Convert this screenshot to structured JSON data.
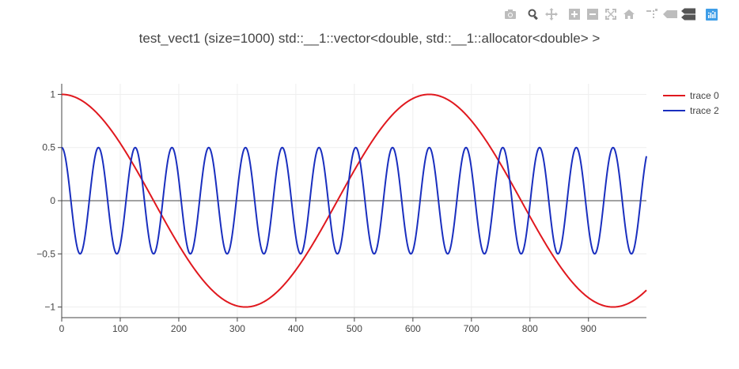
{
  "modebar": {
    "icons": [
      "camera-icon",
      "zoom-icon",
      "pan-icon",
      "zoom-in-icon",
      "zoom-out-icon",
      "autoscale-icon",
      "reset-axes-icon",
      "spike-lines-icon",
      "hover-closest-icon",
      "hover-compare-icon",
      "plotly-logo-icon"
    ],
    "logo_color": "#3f9ee8",
    "icon_color": "#bdbdbd"
  },
  "chart_data": {
    "type": "line",
    "title": "test_vect1 (size=1000) std::__1::vector<double, std::__1::allocator<double> >",
    "xlabel": "",
    "ylabel": "",
    "xlim": [
      0,
      999
    ],
    "ylim": [
      -1.1,
      1.1
    ],
    "x_ticks": [
      0,
      100,
      200,
      300,
      400,
      500,
      600,
      700,
      800,
      900
    ],
    "y_ticks": [
      -1,
      -0.5,
      0,
      0.5,
      1
    ],
    "y_tick_labels": [
      "−1",
      "−0.5",
      "0",
      "0.5",
      "1"
    ],
    "x_tick_labels": [
      "0",
      "100",
      "200",
      "300",
      "400",
      "500",
      "600",
      "700",
      "800",
      "900"
    ],
    "grid": true,
    "legend_position": "top-right",
    "series": [
      {
        "name": "trace 0",
        "color": "#e0181e",
        "function": "y = cos(2*pi*x/628)",
        "amplitude": 1,
        "period": 628,
        "phase": 0,
        "n_points": 1000
      },
      {
        "name": "trace 2",
        "color": "#1a2fbf",
        "function": "y = 0.5*cos(2*pi*x/62.8)",
        "amplitude": 0.5,
        "period": 62.8,
        "phase": 0,
        "n_points": 1000
      }
    ]
  }
}
